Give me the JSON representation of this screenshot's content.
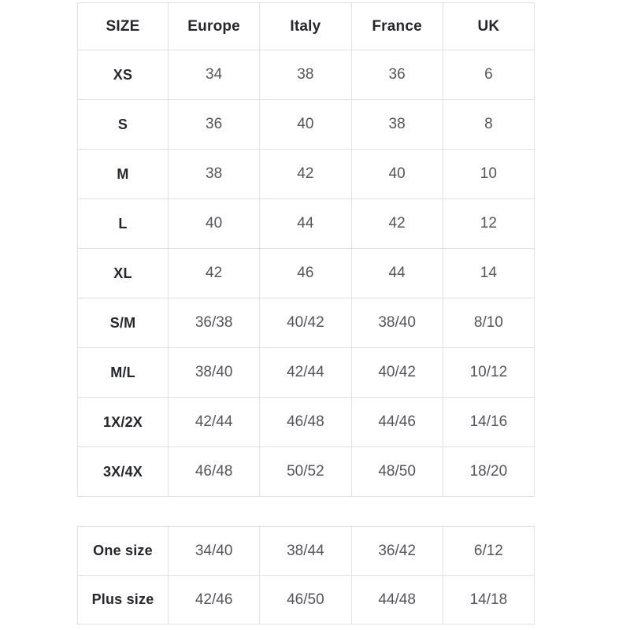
{
  "colors": {
    "background": "#ffffff",
    "border": "#e1e1e5",
    "header_text": "#26262e",
    "value_text": "#55555a"
  },
  "main_table": {
    "columns": [
      "SIZE",
      "Europe",
      "Italy",
      "France",
      "UK"
    ],
    "rows": [
      {
        "label": "XS",
        "values": [
          "34",
          "38",
          "36",
          "6"
        ]
      },
      {
        "label": "S",
        "values": [
          "36",
          "40",
          "38",
          "8"
        ]
      },
      {
        "label": "M",
        "values": [
          "38",
          "42",
          "40",
          "10"
        ]
      },
      {
        "label": "L",
        "values": [
          "40",
          "44",
          "42",
          "12"
        ]
      },
      {
        "label": "XL",
        "values": [
          "42",
          "46",
          "44",
          "14"
        ]
      },
      {
        "label": "S/M",
        "values": [
          "36/38",
          "40/42",
          "38/40",
          "8/10"
        ]
      },
      {
        "label": "M/L",
        "values": [
          "38/40",
          "42/44",
          "40/42",
          "10/12"
        ]
      },
      {
        "label": "1X/2X",
        "values": [
          "42/44",
          "46/48",
          "44/46",
          "14/16"
        ]
      },
      {
        "label": "3X/4X",
        "values": [
          "46/48",
          "50/52",
          "48/50",
          "18/20"
        ]
      }
    ]
  },
  "secondary_table": {
    "rows": [
      {
        "label": "One size",
        "values": [
          "34/40",
          "38/44",
          "36/42",
          "6/12"
        ]
      },
      {
        "label": "Plus size",
        "values": [
          "42/46",
          "46/50",
          "44/48",
          "14/18"
        ]
      }
    ]
  }
}
